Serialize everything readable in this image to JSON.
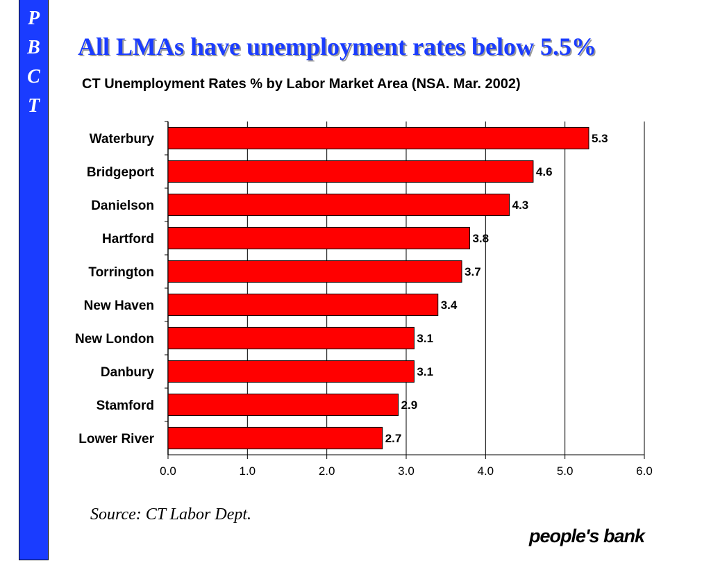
{
  "sidebar": {
    "letters": [
      "P",
      "B",
      "C",
      "T"
    ],
    "color": "#1a3cff"
  },
  "title": "All LMAs have unemployment rates below 5.5%",
  "source": "Source: CT Labor Dept.",
  "logo": "people's bank",
  "chart_data": {
    "type": "bar",
    "orientation": "horizontal",
    "title": "CT Unemployment Rates %  by Labor Market Area (NSA. Mar. 2002)",
    "categories": [
      "Waterbury",
      "Bridgeport",
      "Danielson",
      "Hartford",
      "Torrington",
      "New Haven",
      "New London",
      "Danbury",
      "Stamford",
      "Lower River"
    ],
    "values": [
      5.3,
      4.6,
      4.3,
      3.8,
      3.7,
      3.4,
      3.1,
      3.1,
      2.9,
      2.7
    ],
    "value_labels": [
      "5.3",
      "4.6",
      "4.3",
      "3.8",
      "3.7",
      "3.4",
      "3.1",
      "3.1",
      "2.9",
      "2.7"
    ],
    "xlim": [
      0,
      6
    ],
    "xticks": [
      "0.0",
      "1.0",
      "2.0",
      "3.0",
      "4.0",
      "5.0",
      "6.0"
    ],
    "grid": "vertical",
    "legend": "none",
    "bar_color": "#ff0000",
    "xlabel": "",
    "ylabel": ""
  }
}
